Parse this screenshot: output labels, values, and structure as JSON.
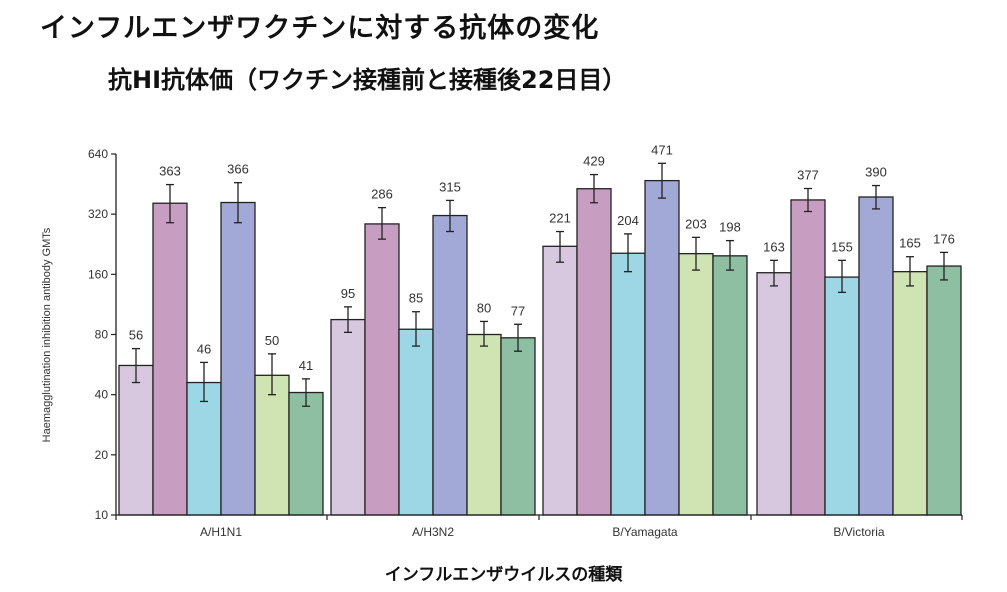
{
  "page": {
    "title": "インフルエンザワクチンに対する抗体の変化",
    "subtitle": "抗HI抗体価（ワクチン接種前と接種後22日目）",
    "x_axis_title": "インフルエンザウイルスの種類"
  },
  "chart_data": {
    "type": "bar",
    "title": "",
    "xlabel": "インフルエンザウイルスの種類",
    "ylabel": "Haemagglutination inhibition antibody GMTs",
    "yscale": "log2",
    "ylim": [
      10,
      640
    ],
    "yticks": [
      10,
      20,
      40,
      80,
      160,
      320,
      640
    ],
    "grid": false,
    "legend": "none",
    "categories": [
      "A/H1N1",
      "A/H3N2",
      "B/Yamagata",
      "B/Victoria"
    ],
    "series": [
      {
        "color": "#d7c8e0",
        "values": [
          56,
          95,
          221,
          163
        ],
        "err_low": [
          46,
          82,
          184,
          140
        ],
        "err_high": [
          68,
          110,
          262,
          188
        ]
      },
      {
        "color": "#c79ec2",
        "values": [
          363,
          286,
          429,
          377
        ],
        "err_low": [
          290,
          240,
          365,
          330
        ],
        "err_high": [
          450,
          345,
          505,
          430
        ]
      },
      {
        "color": "#9dd7e6",
        "values": [
          46,
          85,
          204,
          155
        ],
        "err_low": [
          37,
          70,
          165,
          130
        ],
        "err_high": [
          58,
          104,
          255,
          188
        ]
      },
      {
        "color": "#a2a9d6",
        "values": [
          366,
          315,
          471,
          390
        ],
        "err_low": [
          290,
          262,
          385,
          340
        ],
        "err_high": [
          460,
          375,
          575,
          445
        ]
      },
      {
        "color": "#cfe3b3",
        "values": [
          50,
          80,
          203,
          165
        ],
        "err_low": [
          40,
          70,
          168,
          140
        ],
        "err_high": [
          64,
          93,
          245,
          196
        ]
      },
      {
        "color": "#8fbfa2",
        "values": [
          41,
          77,
          198,
          176
        ],
        "err_low": [
          35,
          66,
          168,
          150
        ],
        "err_high": [
          48,
          90,
          236,
          206
        ]
      }
    ]
  }
}
